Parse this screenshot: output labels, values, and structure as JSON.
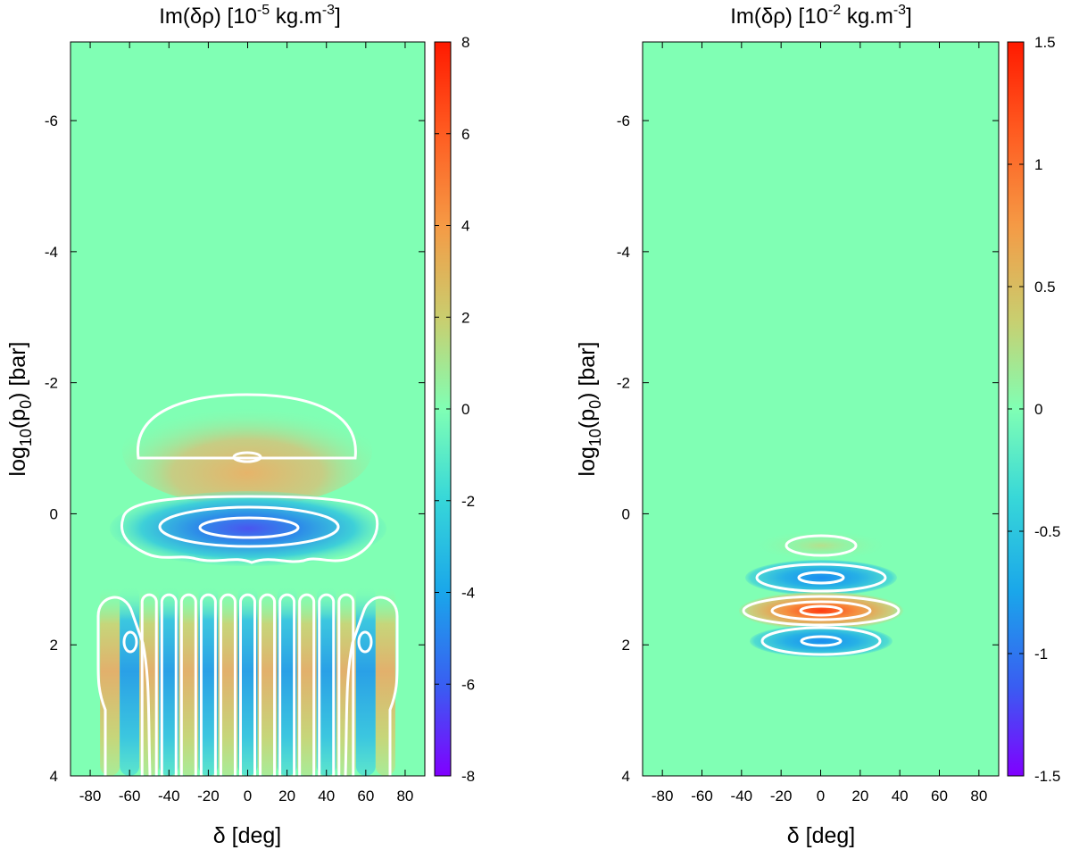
{
  "chart_data": [
    {
      "type": "heatmap",
      "title_prefix": "Im(δρ) [10",
      "title_exp": "-5",
      "title_suffix": " kg.m",
      "title_unit_exp": "-3",
      "title_end": "]",
      "xlabel": "δ [deg]",
      "ylabel_prefix": "log",
      "ylabel_sub1": "10",
      "ylabel_mid": "(p",
      "ylabel_sub2": "0",
      "ylabel_end": ") [bar]",
      "xlim": [
        -90,
        90
      ],
      "ylim": [
        4,
        -7.2
      ],
      "xticks": [
        "-80",
        "-60",
        "-40",
        "-20",
        "0",
        "20",
        "40",
        "60",
        "80"
      ],
      "xtick_values": [
        -80,
        -60,
        -40,
        -20,
        0,
        20,
        40,
        60,
        80
      ],
      "yticks": [
        "-6",
        "-4",
        "-2",
        "0",
        "2",
        "4"
      ],
      "ytick_values": [
        -6,
        -4,
        -2,
        0,
        2,
        4
      ],
      "colorbar": {
        "range": [
          -8,
          8
        ],
        "ticks": [
          "8",
          "6",
          "4",
          "2",
          "0",
          "-2",
          "-4",
          "-6",
          "-8"
        ],
        "tick_values": [
          8,
          6,
          4,
          2,
          0,
          -2,
          -4,
          -6,
          -8
        ]
      },
      "features": [
        {
          "name": "positive-lobe",
          "center_deg": 0,
          "center_logp": -0.9,
          "peak": 3
        },
        {
          "name": "negative-lobe",
          "center_deg": 0,
          "center_logp": 0.2,
          "peak": -6.5
        },
        {
          "name": "vertical-stripes",
          "logp_range": [
            1.1,
            4
          ],
          "lat_spacing_deg": 10,
          "peak": 3
        }
      ]
    },
    {
      "type": "heatmap",
      "title_prefix": "Im(δρ) [10",
      "title_exp": "-2",
      "title_suffix": " kg.m",
      "title_unit_exp": "-3",
      "title_end": "]",
      "xlabel": "δ [deg]",
      "ylabel_prefix": "log",
      "ylabel_sub1": "10",
      "ylabel_mid": "(p",
      "ylabel_sub2": "0",
      "ylabel_end": ") [bar]",
      "xlim": [
        -90,
        90
      ],
      "ylim": [
        4,
        -7.2
      ],
      "xticks": [
        "-80",
        "-60",
        "-40",
        "-20",
        "0",
        "20",
        "40",
        "60",
        "80"
      ],
      "xtick_values": [
        -80,
        -60,
        -40,
        -20,
        0,
        20,
        40,
        60,
        80
      ],
      "yticks": [
        "-6",
        "-4",
        "-2",
        "0",
        "2",
        "4"
      ],
      "ytick_values": [
        -6,
        -4,
        -2,
        0,
        2,
        4
      ],
      "colorbar": {
        "range": [
          -1.5,
          1.5
        ],
        "ticks": [
          "1.5",
          "1",
          "0.5",
          "0",
          "-0.5",
          "-1",
          "-1.5"
        ],
        "tick_values": [
          1.5,
          1,
          0.5,
          0,
          -0.5,
          -1,
          -1.5
        ]
      },
      "features": [
        {
          "name": "lobe-1",
          "center_deg": 0,
          "center_logp": 0.5,
          "peak": 0.3
        },
        {
          "name": "lobe-2",
          "center_deg": 0,
          "center_logp": 1.0,
          "peak": -0.8
        },
        {
          "name": "lobe-3",
          "center_deg": 0,
          "center_logp": 1.5,
          "peak": 1.2
        },
        {
          "name": "lobe-4",
          "center_deg": 0,
          "center_logp": 1.95,
          "peak": -0.8
        }
      ]
    }
  ]
}
